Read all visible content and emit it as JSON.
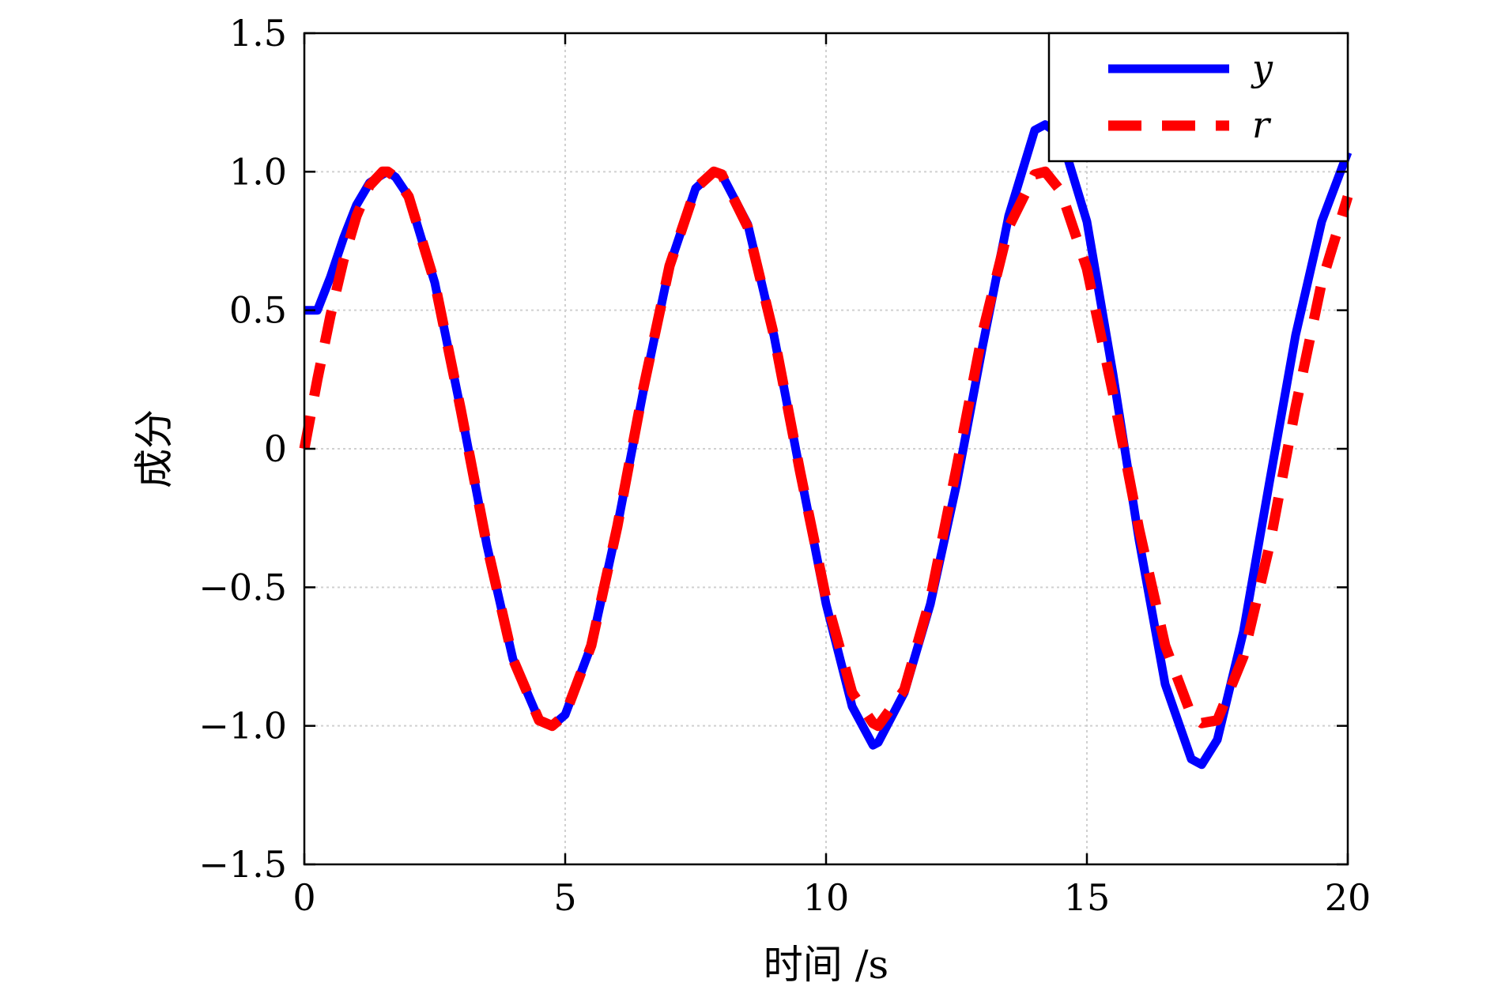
{
  "chart_data": {
    "type": "line",
    "title": "",
    "xlabel": "时间 /s",
    "ylabel": "成分",
    "xlim": [
      0,
      20
    ],
    "ylim": [
      -1.5,
      1.5
    ],
    "x_ticks": [
      "0",
      "5",
      "10",
      "15",
      "20"
    ],
    "y_ticks": [
      "1.5",
      "1.0",
      "0.5",
      "0",
      "−0.5",
      "−1.0",
      "−1.5"
    ],
    "grid": true,
    "legend_position": "top-right",
    "series": [
      {
        "name": "y",
        "color": "#0000ff",
        "style": "solid",
        "x": [
          0,
          0.25,
          0.5,
          0.75,
          1.0,
          1.25,
          1.5,
          1.6,
          1.75,
          2.0,
          2.5,
          3.0,
          3.5,
          4.0,
          4.5,
          4.75,
          5.0,
          5.5,
          6.0,
          6.5,
          7.0,
          7.5,
          7.85,
          8.0,
          8.5,
          9.0,
          9.5,
          10.0,
          10.5,
          10.9,
          11.0,
          11.5,
          12.0,
          12.5,
          13.0,
          13.5,
          14.0,
          14.2,
          14.5,
          15.0,
          15.5,
          16.0,
          16.5,
          17.0,
          17.2,
          17.5,
          18.0,
          18.5,
          19.0,
          19.5,
          20.0
        ],
        "y": [
          0.5,
          0.5,
          0.62,
          0.76,
          0.88,
          0.96,
          0.99,
          1.0,
          0.98,
          0.91,
          0.6,
          0.14,
          -0.35,
          -0.76,
          -0.98,
          -1.0,
          -0.96,
          -0.71,
          -0.28,
          0.21,
          0.66,
          0.94,
          1.0,
          0.99,
          0.81,
          0.41,
          -0.08,
          -0.56,
          -0.93,
          -1.07,
          -1.06,
          -0.88,
          -0.56,
          -0.13,
          0.37,
          0.84,
          1.15,
          1.17,
          1.13,
          0.82,
          0.27,
          -0.33,
          -0.85,
          -1.12,
          -1.14,
          -1.05,
          -0.66,
          -0.12,
          0.41,
          0.82,
          1.07
        ]
      },
      {
        "name": "r",
        "color": "#ff0000",
        "style": "dashed",
        "x": [
          0,
          0.25,
          0.5,
          0.75,
          1.0,
          1.25,
          1.5,
          1.6,
          1.75,
          2.0,
          2.5,
          3.0,
          3.5,
          4.0,
          4.5,
          4.75,
          5.0,
          5.5,
          6.0,
          6.5,
          7.0,
          7.5,
          7.85,
          8.0,
          8.5,
          9.0,
          9.5,
          10.0,
          10.5,
          10.9,
          11.0,
          11.5,
          12.0,
          12.5,
          13.0,
          13.5,
          14.0,
          14.2,
          14.5,
          15.0,
          15.5,
          16.0,
          16.5,
          17.0,
          17.2,
          17.5,
          18.0,
          18.5,
          19.0,
          19.5,
          20.0
        ],
        "y": [
          0.0,
          0.25,
          0.48,
          0.68,
          0.84,
          0.95,
          1.0,
          1.0,
          0.98,
          0.91,
          0.6,
          0.14,
          -0.35,
          -0.76,
          -0.98,
          -1.0,
          -0.96,
          -0.71,
          -0.28,
          0.22,
          0.66,
          0.94,
          1.0,
          0.99,
          0.8,
          0.41,
          -0.08,
          -0.54,
          -0.88,
          -0.99,
          -1.0,
          -0.87,
          -0.54,
          -0.07,
          0.42,
          0.8,
          0.99,
          1.0,
          0.93,
          0.65,
          0.2,
          -0.29,
          -0.71,
          -0.96,
          -0.99,
          -0.98,
          -0.75,
          -0.35,
          0.15,
          0.6,
          0.91
        ]
      }
    ]
  }
}
